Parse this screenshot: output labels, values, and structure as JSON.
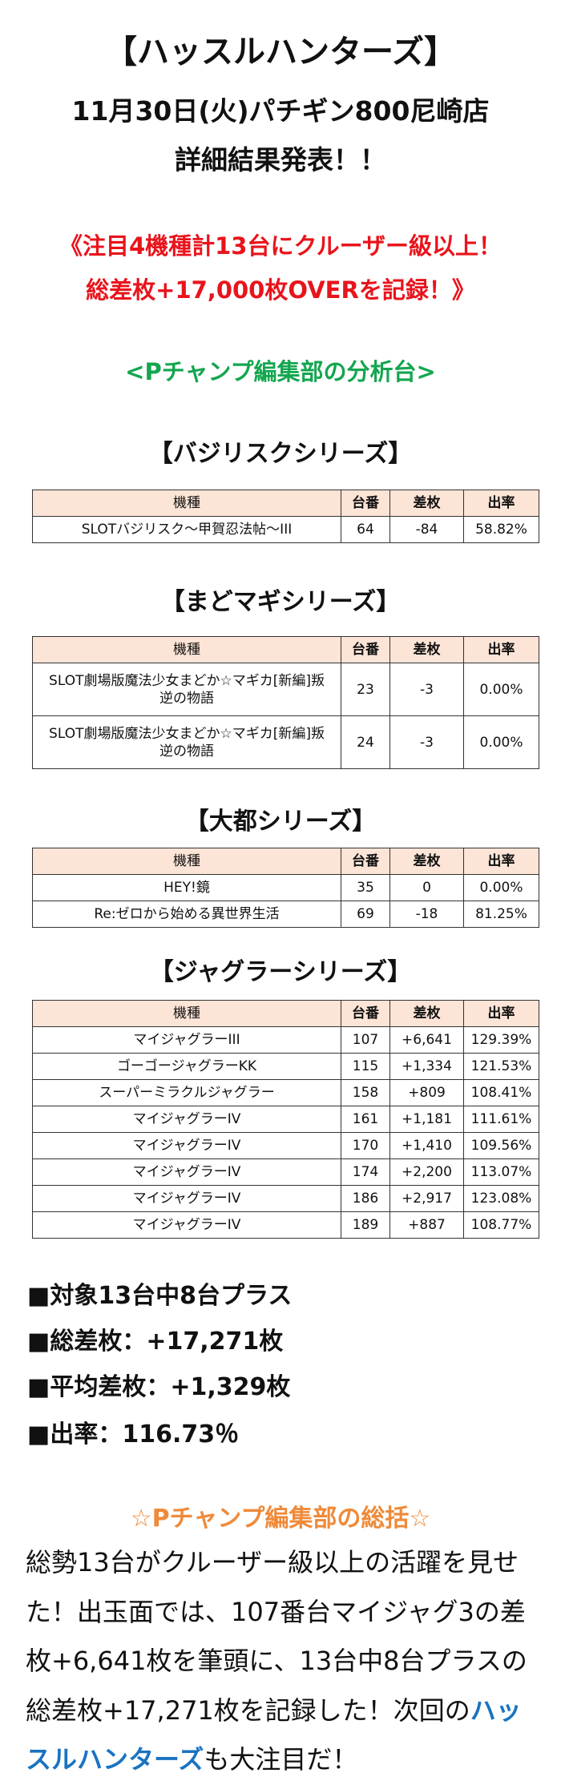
{
  "header": {
    "title": "【ハッスルハンターズ】",
    "subtitle": "11月30日(火)パチギン800尼崎店",
    "announce": "詳細結果発表！！"
  },
  "highlight": {
    "line1": "《注目4機種計13台にクルーザー級以上！",
    "line2": "総差枚+17,000枚OVERを記録！》"
  },
  "section_label": "<Pチャンプ編集部の分析台>",
  "columns": [
    "機種",
    "台番",
    "差枚",
    "出率"
  ],
  "tables": [
    {
      "title": "【バジリスクシリーズ】",
      "rows": [
        [
          "SLOTバジリスク～甲賀忍法帖～III",
          "64",
          "-84",
          "58.82%"
        ]
      ]
    },
    {
      "title": "【まどマギシリーズ】",
      "rows": [
        [
          "SLOT劇場版魔法少女まどか☆マギカ[新編]叛逆の物語",
          "23",
          "-3",
          "0.00%"
        ],
        [
          "SLOT劇場版魔法少女まどか☆マギカ[新編]叛逆の物語",
          "24",
          "-3",
          "0.00%"
        ]
      ]
    },
    {
      "title": "【大都シリーズ】",
      "rows": [
        [
          "HEY!鏡",
          "35",
          "0",
          "0.00%"
        ],
        [
          "Re:ゼロから始める異世界生活",
          "69",
          "-18",
          "81.25%"
        ]
      ]
    },
    {
      "title": "【ジャグラーシリーズ】",
      "rows": [
        [
          "マイジャグラーIII",
          "107",
          "+6,641",
          "129.39%"
        ],
        [
          "ゴーゴージャグラーKK",
          "115",
          "+1,334",
          "121.53%"
        ],
        [
          "スーパーミラクルジャグラー",
          "158",
          "+809",
          "108.41%"
        ],
        [
          "マイジャグラーIV",
          "161",
          "+1,181",
          "111.61%"
        ],
        [
          "マイジャグラーIV",
          "170",
          "+1,410",
          "109.56%"
        ],
        [
          "マイジャグラーIV",
          "174",
          "+2,200",
          "113.07%"
        ],
        [
          "マイジャグラーIV",
          "186",
          "+2,917",
          "123.08%"
        ],
        [
          "マイジャグラーIV",
          "189",
          "+887",
          "108.77%"
        ]
      ]
    }
  ],
  "summary": [
    "■対象13台中8台プラス",
    "■総差枚：+17,271枚",
    "■平均差枚：+1,329枚",
    "■出率：116.73％"
  ],
  "review": {
    "title": "☆Pチャンプ編集部の総括☆",
    "text_before": "総勢13台がクルーザー級以上の活躍を見せた！出玉面では、107番台マイジャグ3の差枚+6,641枚を筆頭に、13台中8台プラスの総差枚+17,271枚を記録した！次回の",
    "highlight": "ハッスルハンターズ",
    "text_after": "も大注目だ！"
  },
  "colors": {
    "red": "#e8141c",
    "green": "#13a64f",
    "orange": "#ef8a3a",
    "blue": "#1a73c2",
    "header_bg": "#fce4d6"
  }
}
